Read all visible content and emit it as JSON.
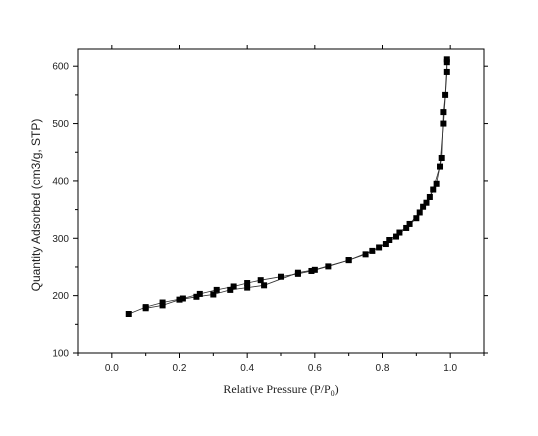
{
  "chart_data": {
    "type": "scatter",
    "xlabel": "Relative Pressure (P/P",
    "xlabel_subscript": "0",
    "xlabel_suffix": ")",
    "ylabel": "Quantity Adsorbed (cm3/g, STP)",
    "xlim": [
      -0.1,
      1.1
    ],
    "ylim": [
      100,
      630
    ],
    "x_ticks": [
      0.0,
      0.2,
      0.4,
      0.6,
      0.8,
      1.0
    ],
    "x_tick_labels": [
      "0.0",
      "0.2",
      "0.4",
      "0.6",
      "0.8",
      "1.0"
    ],
    "y_ticks": [
      100,
      200,
      300,
      400,
      500,
      600
    ],
    "y_tick_labels": [
      "100",
      "200",
      "300",
      "400",
      "500",
      "600"
    ],
    "grid": false,
    "marker": "square",
    "series": [
      {
        "values": [
          [
            0.05,
            168
          ],
          [
            0.1,
            180
          ],
          [
            0.15,
            188
          ],
          [
            0.21,
            195
          ],
          [
            0.26,
            203
          ],
          [
            0.31,
            210
          ],
          [
            0.36,
            216
          ],
          [
            0.4,
            222
          ],
          [
            0.44,
            227
          ],
          [
            0.5,
            233
          ],
          [
            0.55,
            238
          ],
          [
            0.59,
            243
          ],
          [
            0.64,
            251
          ],
          [
            0.7,
            262
          ],
          [
            0.75,
            272
          ],
          [
            0.79,
            284
          ],
          [
            0.82,
            297
          ],
          [
            0.85,
            310
          ],
          [
            0.88,
            325
          ],
          [
            0.91,
            345
          ],
          [
            0.93,
            362
          ],
          [
            0.95,
            385
          ],
          [
            0.97,
            425
          ],
          [
            0.98,
            500
          ],
          [
            0.99,
            590
          ],
          [
            0.99,
            612
          ]
        ]
      },
      {
        "values": [
          [
            0.99,
            607
          ],
          [
            0.985,
            550
          ],
          [
            0.98,
            520
          ],
          [
            0.975,
            440
          ],
          [
            0.96,
            395
          ],
          [
            0.94,
            372
          ],
          [
            0.92,
            355
          ],
          [
            0.9,
            335
          ],
          [
            0.87,
            318
          ],
          [
            0.84,
            303
          ],
          [
            0.81,
            290
          ],
          [
            0.77,
            278
          ],
          [
            0.7,
            262
          ],
          [
            0.6,
            245
          ],
          [
            0.55,
            240
          ],
          [
            0.45,
            218
          ],
          [
            0.4,
            214
          ],
          [
            0.35,
            210
          ],
          [
            0.3,
            202
          ],
          [
            0.25,
            198
          ],
          [
            0.2,
            193
          ],
          [
            0.15,
            183
          ],
          [
            0.1,
            178
          ]
        ]
      }
    ]
  }
}
